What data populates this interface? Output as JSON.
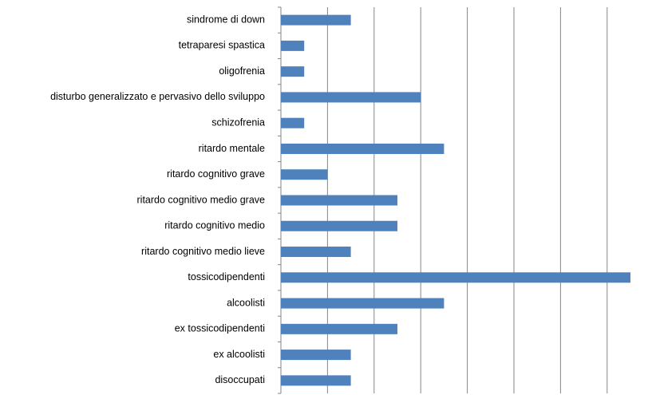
{
  "chart_data": {
    "type": "bar",
    "orientation": "horizontal",
    "categories": [
      "sindrome di down",
      "tetraparesi spastica",
      "oligofrenia",
      "disturbo generalizzato e pervasivo dello sviluppo",
      "schizofrenia",
      "ritardo mentale",
      "ritardo cognitivo grave",
      "ritardo cognitivo medio grave",
      "ritardo cognitivo medio",
      "ritardo cognitivo medio lieve",
      "tossicodipendenti",
      "alcoolisti",
      "ex tossicodipendenti",
      "ex alcoolisti",
      "disoccupati"
    ],
    "values": [
      1.5,
      0.5,
      0.5,
      3,
      0.5,
      3.5,
      1,
      2.5,
      2.5,
      1.5,
      7.5,
      3.5,
      2.5,
      1.5,
      1.5
    ],
    "color": "#4f81bd",
    "xlim": [
      0,
      7.5
    ],
    "xticks": [
      0,
      1,
      2,
      3,
      4,
      5,
      6,
      7
    ],
    "grid": true
  }
}
